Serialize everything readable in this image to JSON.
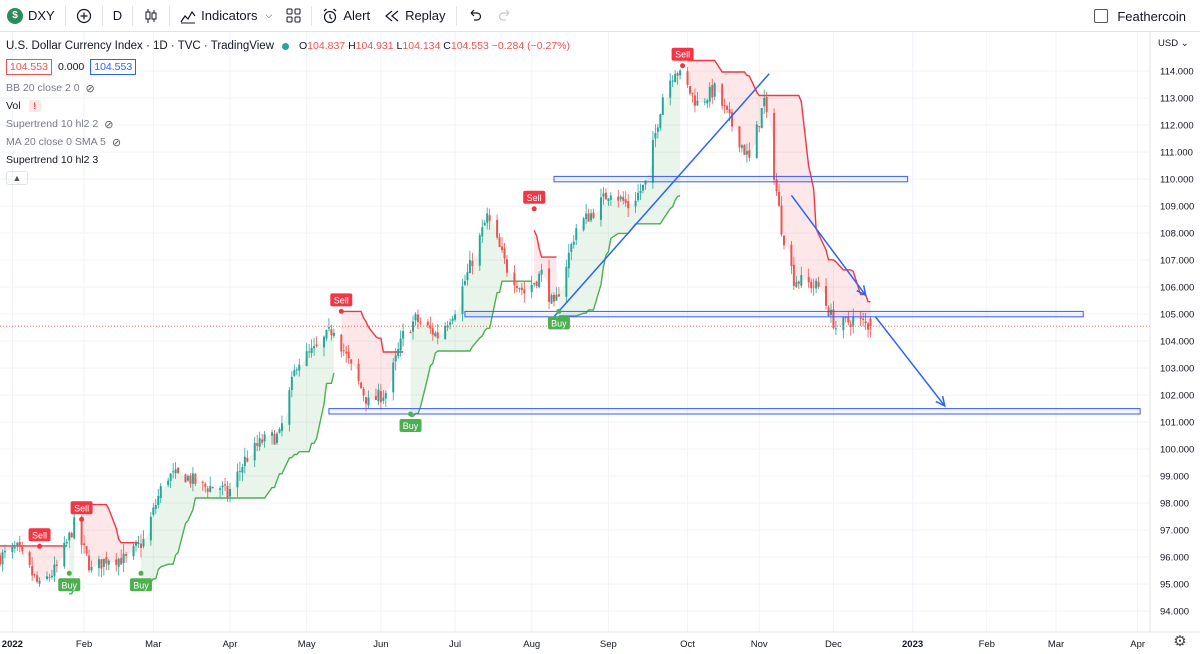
{
  "toolbar": {
    "symbol": "DXY",
    "symbol_logo": "$",
    "interval": "D",
    "indicators_label": "Indicators",
    "alert_label": "Alert",
    "replay_label": "Replay",
    "account_name": "Feathercoin"
  },
  "legend": {
    "title": "U.S. Dollar Currency Index · 1D · TVC · TradingView",
    "open_key": "O",
    "open": "104.837",
    "high_key": "H",
    "high": "104.931",
    "low_key": "L",
    "low": "104.134",
    "close_key": "C",
    "close": "104.553",
    "change": "−0.284 (−0.27%)",
    "bid": "104.553",
    "spread": "0.000",
    "ask": "104.553",
    "indicators": [
      "BB 20 close 2 0",
      "Vol",
      "Supertrend 10 hl2 2",
      "MA 20 close 0 SMA 5",
      "Supertrend 10 hl2 3"
    ]
  },
  "price_axis": {
    "currency": "USD",
    "ticks": [
      "114.000",
      "113.000",
      "112.000",
      "111.000",
      "110.000",
      "109.000",
      "108.000",
      "107.000",
      "106.000",
      "105.000",
      "104.000",
      "103.000",
      "102.000",
      "101.000",
      "100.000",
      "99.000",
      "98.000",
      "97.000",
      "96.000",
      "95.000",
      "94.000"
    ]
  },
  "time_axis": {
    "labels": [
      "2022",
      "Feb",
      "Mar",
      "Apr",
      "May",
      "Jun",
      "Jul",
      "Aug",
      "Sep",
      "Oct",
      "Nov",
      "Dec",
      "2023",
      "Feb",
      "Mar",
      "Apr"
    ]
  },
  "signals": {
    "sell_label": "Sell",
    "buy_label": "Buy"
  },
  "colors": {
    "up": "#26a69a",
    "down": "#ef5350",
    "supertrend_up": "#4caf50",
    "supertrend_down": "#f23645",
    "drawing": "#2962ff"
  },
  "chart_data": {
    "type": "candlestick",
    "title": "U.S. Dollar Currency Index · 1D · TVC · TradingView",
    "ylim": [
      93.3,
      115.3
    ],
    "x_range": [
      "2021-12-29",
      "2023-04-08"
    ],
    "close_series": [
      [
        "2021-12-29",
        96.0
      ],
      [
        "2022-01-05",
        96.3
      ],
      [
        "2022-01-12",
        95.2
      ],
      [
        "2022-01-14",
        94.9
      ],
      [
        "2022-01-21",
        95.6
      ],
      [
        "2022-01-28",
        97.2
      ],
      [
        "2022-02-04",
        95.5
      ],
      [
        "2022-02-11",
        96.0
      ],
      [
        "2022-02-18",
        95.9
      ],
      [
        "2022-02-25",
        96.6
      ],
      [
        "2022-03-04",
        98.5
      ],
      [
        "2022-03-07",
        99.0
      ],
      [
        "2022-03-14",
        99.0
      ],
      [
        "2022-03-21",
        98.6
      ],
      [
        "2022-03-28",
        98.6
      ],
      [
        "2022-03-31",
        98.3
      ],
      [
        "2022-04-07",
        99.6
      ],
      [
        "2022-04-14",
        100.3
      ],
      [
        "2022-04-21",
        100.5
      ],
      [
        "2022-04-28",
        103.2
      ],
      [
        "2022-05-06",
        103.7
      ],
      [
        "2022-05-13",
        104.5
      ],
      [
        "2022-05-20",
        103.0
      ],
      [
        "2022-05-27",
        101.7
      ],
      [
        "2022-06-03",
        102.1
      ],
      [
        "2022-06-10",
        104.2
      ],
      [
        "2022-06-15",
        104.8
      ],
      [
        "2022-06-24",
        104.2
      ],
      [
        "2022-07-01",
        105.2
      ],
      [
        "2022-07-08",
        107.0
      ],
      [
        "2022-07-14",
        108.6
      ],
      [
        "2022-07-22",
        106.7
      ],
      [
        "2022-07-29",
        105.8
      ],
      [
        "2022-08-05",
        106.5
      ],
      [
        "2022-08-10",
        105.2
      ],
      [
        "2022-08-19",
        108.2
      ],
      [
        "2022-08-26",
        108.8
      ],
      [
        "2022-09-02",
        109.6
      ],
      [
        "2022-09-09",
        109.0
      ],
      [
        "2022-09-16",
        109.8
      ],
      [
        "2022-09-23",
        113.1
      ],
      [
        "2022-09-28",
        114.1
      ],
      [
        "2022-10-07",
        112.8
      ],
      [
        "2022-10-14",
        113.3
      ],
      [
        "2022-10-21",
        112.0
      ],
      [
        "2022-10-28",
        110.7
      ],
      [
        "2022-11-03",
        112.9
      ],
      [
        "2022-11-10",
        108.2
      ],
      [
        "2022-11-15",
        106.3
      ],
      [
        "2022-11-25",
        106.0
      ],
      [
        "2022-12-02",
        104.5
      ],
      [
        "2022-12-09",
        104.8
      ],
      [
        "2022-12-16",
        104.55
      ]
    ],
    "horizontal_zones": [
      {
        "from": "2022-08-10",
        "to": "2022-12-31",
        "top": 110.1,
        "bottom": 109.9
      },
      {
        "from": "2022-07-05",
        "to": "2023-03-12",
        "top": 105.1,
        "bottom": 104.9
      },
      {
        "from": "2022-05-11",
        "to": "2023-04-04",
        "top": 101.5,
        "bottom": 101.3
      }
    ],
    "trendlines": [
      {
        "from": [
          "2022-08-10",
          104.9
        ],
        "to": [
          "2022-11-05",
          113.9
        ]
      },
      {
        "from": [
          "2022-11-14",
          109.4
        ],
        "to": [
          "2022-12-14",
          105.7
        ],
        "arrow": true
      },
      {
        "from": [
          "2022-12-18",
          104.9
        ],
        "to": [
          "2023-01-15",
          101.6
        ],
        "arrow": true
      }
    ],
    "supertrend_signals": [
      {
        "type": "Sell",
        "date": "2022-01-14",
        "price": 96.4
      },
      {
        "type": "Buy",
        "date": "2022-01-26",
        "price": 95.4
      },
      {
        "type": "Sell",
        "date": "2022-01-31",
        "price": 97.4
      },
      {
        "type": "Buy",
        "date": "2022-02-24",
        "price": 95.4
      },
      {
        "type": "Sell",
        "date": "2022-05-16",
        "price": 105.1
      },
      {
        "type": "Buy",
        "date": "2022-06-13",
        "price": 101.3
      },
      {
        "type": "Sell",
        "date": "2022-08-02",
        "price": 108.9
      },
      {
        "type": "Buy",
        "date": "2022-08-12",
        "price": 105.1
      },
      {
        "type": "Sell",
        "date": "2022-10-01",
        "price": 114.2
      }
    ]
  }
}
